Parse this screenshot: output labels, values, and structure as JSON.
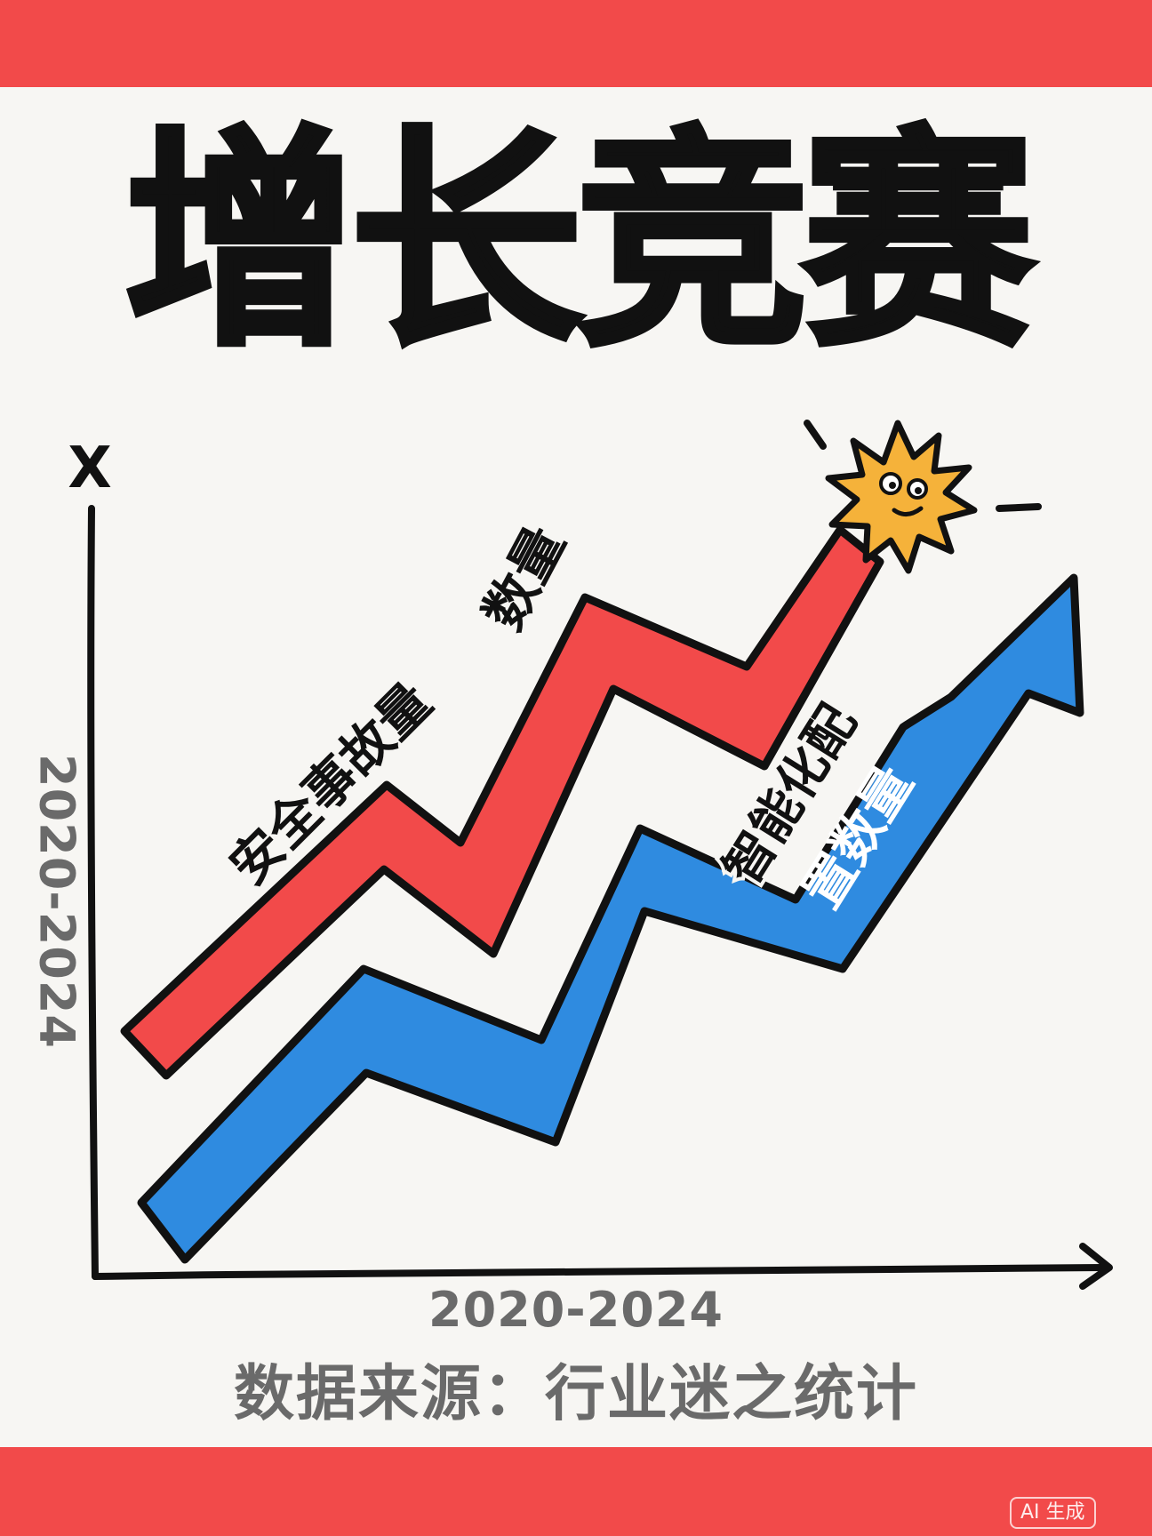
{
  "title": "增长竞赛",
  "axis": {
    "y_letter": "X",
    "x_range_label": "2020-2024",
    "y_range_label": "2020-2024"
  },
  "source_line": "数据来源：行业迷之统计",
  "badge": "AI 生成",
  "colors": {
    "band": "#f24a4a",
    "series_red": "#f24a4a",
    "series_blue": "#2f8be0",
    "ink": "#111111",
    "muted": "#6a6a6a",
    "sun": "#f5b23a"
  },
  "chart_data": {
    "type": "line",
    "title": "增长竞赛",
    "xlabel": "2020-2024",
    "ylabel": "2020-2024",
    "series": [
      {
        "name": "安全事故量数量",
        "label_parts": [
          "安全事故量",
          "数量"
        ],
        "color": "#f24a4a"
      },
      {
        "name": "智能化配置数量",
        "label_parts": [
          "智能化配",
          "置数量"
        ],
        "color": "#2f8be0"
      }
    ]
  }
}
